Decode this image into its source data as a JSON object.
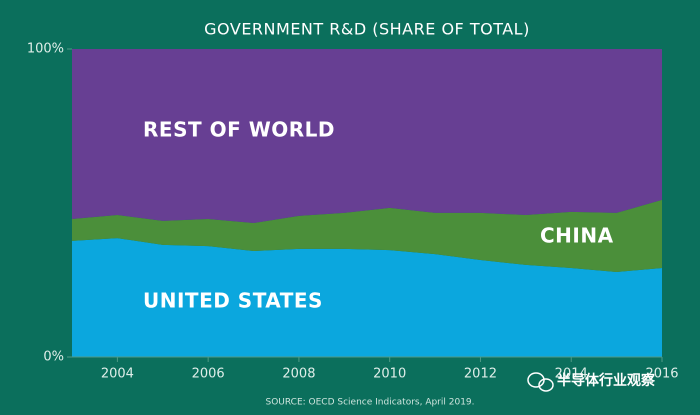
{
  "chart_data": {
    "type": "stacked-area",
    "title": "GOVERNMENT R&D (SHARE OF TOTAL)",
    "source": "SOURCE: OECD Science Indicators, April 2019.",
    "watermark": "半导体行业观察",
    "x": [
      2003,
      2004,
      2005,
      2006,
      2007,
      2008,
      2009,
      2010,
      2011,
      2012,
      2013,
      2014,
      2015,
      2016
    ],
    "xlim": [
      2003,
      2016
    ],
    "xticks": [
      2004,
      2006,
      2008,
      2010,
      2012,
      2014,
      2016
    ],
    "ylim": [
      0,
      100
    ],
    "yticks": [
      {
        "value": 0,
        "label": "0%"
      },
      {
        "value": 100,
        "label": "100%"
      }
    ],
    "series": [
      {
        "name": "UNITED STATES",
        "color": "#0ba7de",
        "values": [
          37.7,
          38.6,
          36.4,
          36.0,
          34.4,
          35.1,
          35.1,
          34.7,
          33.4,
          31.5,
          29.9,
          28.9,
          27.6,
          28.9
        ]
      },
      {
        "name": "CHINA",
        "color": "#4b8f3a",
        "values": [
          7.1,
          7.5,
          7.8,
          8.8,
          9.1,
          10.7,
          11.7,
          13.7,
          13.4,
          15.3,
          16.2,
          18.2,
          19.2,
          22.1
        ]
      },
      {
        "name": "REST OF WORLD",
        "color": "#673f93",
        "values": [
          55.2,
          53.9,
          55.8,
          55.2,
          56.5,
          54.2,
          53.2,
          51.6,
          53.2,
          53.2,
          53.9,
          52.9,
          53.2,
          49.0
        ]
      }
    ]
  }
}
